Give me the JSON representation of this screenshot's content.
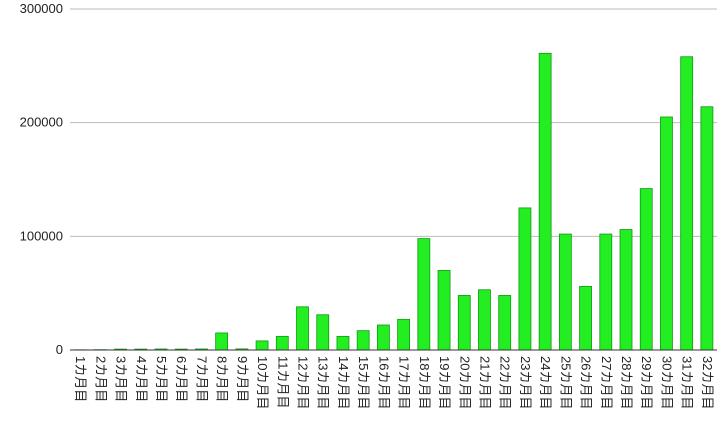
{
  "chart_data": {
    "type": "bar",
    "categories": [
      "1カ月目",
      "2カ月目",
      "3カ月目",
      "4カ月目",
      "5カ月目",
      "6カ月目",
      "7カ月目",
      "8カ月目",
      "9カ月目",
      "10カ月目",
      "11カ月目",
      "12カ月目",
      "13カ月目",
      "14カ月目",
      "15カ月目",
      "16カ月目",
      "17カ月目",
      "18カ月目",
      "19カ月目",
      "20カ月目",
      "21カ月目",
      "22カ月目",
      "23カ月目",
      "24カ月目",
      "25カ月目",
      "26カ月目",
      "27カ月目",
      "28カ月目",
      "29カ月目",
      "30カ月目",
      "31カ月目",
      "32カ月目"
    ],
    "values": [
      200,
      300,
      800,
      800,
      900,
      800,
      900,
      15000,
      1000,
      8000,
      12000,
      38000,
      31000,
      12000,
      17000,
      22000,
      27000,
      98000,
      70000,
      48000,
      53000,
      48000,
      125000,
      261000,
      102000,
      56000,
      102000,
      106000,
      142000,
      205000,
      258000,
      214000
    ],
    "color": "#22ee22",
    "ylim": [
      0,
      300000
    ],
    "yticks": [
      0,
      100000,
      200000,
      300000
    ],
    "grid": true
  }
}
